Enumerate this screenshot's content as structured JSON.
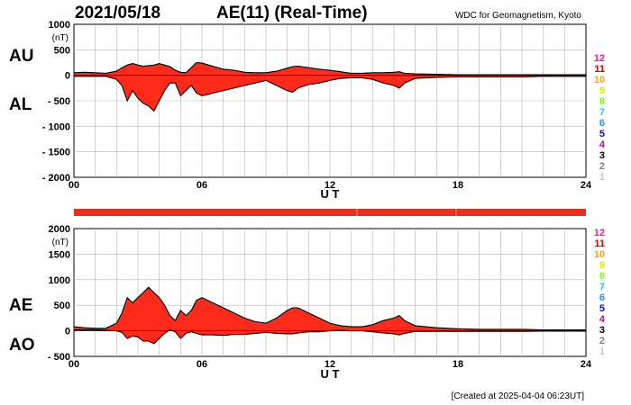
{
  "header": {
    "date": "2021/05/18",
    "title": "AE(11) (Real-Time)",
    "source": "WDC for Geomagnetism, Kyoto"
  },
  "footer": {
    "created": "[Created at 2025-04-04 06:23UT]"
  },
  "colors": {
    "fill": "#ff2a1a",
    "line": "#000000",
    "grid": "#b4b4b4",
    "bar": "#e8301c"
  },
  "legend_numbers": [
    {
      "label": "12",
      "color": "#ff1493"
    },
    {
      "label": "11",
      "color": "#dd0000"
    },
    {
      "label": "10",
      "color": "#ffa500"
    },
    {
      "label": "9",
      "color": "#e6e600"
    },
    {
      "label": "8",
      "color": "#7fff00"
    },
    {
      "label": "7",
      "color": "#00d8e0"
    },
    {
      "label": "6",
      "color": "#1e90ff"
    },
    {
      "label": "5",
      "color": "#1010cc"
    },
    {
      "label": "4",
      "color": "#c000c0"
    },
    {
      "label": "3",
      "color": "#000000"
    },
    {
      "label": "2",
      "color": "#808080"
    },
    {
      "label": "1",
      "color": "#c8c8c8"
    }
  ],
  "chart_data": [
    {
      "type": "area",
      "upper_label": "AU",
      "lower_label": "AL",
      "unit": "(nT)",
      "xlabel": "U T",
      "xlim": [
        0,
        24
      ],
      "ylim": [
        -2000,
        1000
      ],
      "xticks": [
        0,
        6,
        12,
        18,
        24
      ],
      "xtick_labels": [
        "00",
        "06",
        "12",
        "18",
        "24"
      ],
      "yticks": [
        -2000,
        -1500,
        -1000,
        -500,
        0,
        500,
        1000
      ],
      "ytick_labels": [
        "- 2000",
        "- 1500",
        "- 1000",
        "- 500",
        "0",
        "500",
        "1000"
      ],
      "grid": true,
      "x": [
        0,
        0.5,
        1,
        1.5,
        2,
        2.25,
        2.5,
        2.75,
        3,
        3.25,
        3.5,
        3.75,
        4,
        4.25,
        4.5,
        4.75,
        5,
        5.25,
        5.5,
        5.75,
        6,
        6.25,
        6.5,
        7,
        7.5,
        8,
        8.5,
        9,
        9.5,
        10,
        10.25,
        10.5,
        11,
        11.5,
        12,
        12.5,
        13,
        13.5,
        14,
        14.5,
        15,
        15.25,
        15.5,
        16,
        17,
        18,
        19,
        20,
        21,
        22,
        23,
        24
      ],
      "series": [
        {
          "role": "upper",
          "values": [
            50,
            60,
            50,
            40,
            80,
            150,
            200,
            230,
            200,
            180,
            190,
            200,
            230,
            200,
            170,
            100,
            60,
            50,
            150,
            250,
            240,
            210,
            180,
            120,
            100,
            60,
            50,
            50,
            80,
            140,
            170,
            180,
            150,
            120,
            100,
            70,
            40,
            40,
            50,
            50,
            60,
            70,
            40,
            30,
            20,
            10,
            10,
            10,
            10,
            10,
            10,
            10
          ]
        },
        {
          "role": "lower",
          "values": [
            -20,
            -20,
            -20,
            -20,
            -80,
            -200,
            -500,
            -300,
            -450,
            -550,
            -600,
            -700,
            -500,
            -300,
            -150,
            -150,
            -400,
            -300,
            -200,
            -350,
            -400,
            -380,
            -350,
            -300,
            -250,
            -200,
            -150,
            -100,
            -200,
            -300,
            -330,
            -250,
            -180,
            -150,
            -100,
            -60,
            -50,
            -50,
            -80,
            -150,
            -200,
            -250,
            -150,
            -60,
            -40,
            -30,
            -30,
            -30,
            -30,
            -20,
            -20,
            -20
          ]
        }
      ]
    },
    {
      "type": "area",
      "upper_label": "AE",
      "lower_label": "AO",
      "unit": "(nT)",
      "xlabel": "U T",
      "xlim": [
        0,
        24
      ],
      "ylim": [
        -500,
        2000
      ],
      "xticks": [
        0,
        6,
        12,
        18,
        24
      ],
      "xtick_labels": [
        "00",
        "06",
        "12",
        "18",
        "24"
      ],
      "yticks": [
        -500,
        0,
        500,
        1000,
        1500,
        2000
      ],
      "ytick_labels": [
        "- 500",
        "0",
        "500",
        "1000",
        "1500",
        "2000"
      ],
      "grid": true,
      "x": [
        0,
        0.5,
        1,
        1.5,
        2,
        2.25,
        2.5,
        2.75,
        3,
        3.25,
        3.5,
        3.75,
        4,
        4.25,
        4.5,
        4.75,
        5,
        5.25,
        5.5,
        5.75,
        6,
        6.25,
        6.5,
        7,
        7.5,
        8,
        8.5,
        9,
        9.5,
        10,
        10.25,
        10.5,
        11,
        11.5,
        12,
        12.5,
        13,
        13.5,
        14,
        14.5,
        15,
        15.25,
        15.5,
        16,
        17,
        18,
        19,
        20,
        21,
        22,
        23,
        24
      ],
      "series": [
        {
          "role": "upper",
          "values": [
            80,
            60,
            50,
            50,
            150,
            350,
            650,
            550,
            650,
            750,
            850,
            750,
            650,
            500,
            300,
            200,
            400,
            300,
            400,
            600,
            650,
            600,
            550,
            450,
            350,
            250,
            180,
            150,
            250,
            400,
            450,
            450,
            350,
            250,
            150,
            100,
            80,
            80,
            120,
            200,
            250,
            300,
            200,
            100,
            60,
            40,
            30,
            30,
            30,
            20,
            20,
            20
          ]
        },
        {
          "role": "lower",
          "values": [
            20,
            20,
            20,
            10,
            0,
            -30,
            -150,
            -100,
            -120,
            -200,
            -200,
            -250,
            -150,
            -50,
            20,
            -20,
            -150,
            -50,
            -20,
            -50,
            -80,
            -80,
            -80,
            -90,
            -70,
            -70,
            -50,
            -30,
            -50,
            -60,
            -60,
            -40,
            -20,
            -20,
            0,
            10,
            0,
            0,
            -20,
            -40,
            -60,
            -80,
            -50,
            -10,
            -10,
            -10,
            -10,
            -10,
            -10,
            -5,
            -5,
            -5
          ]
        }
      ]
    }
  ]
}
